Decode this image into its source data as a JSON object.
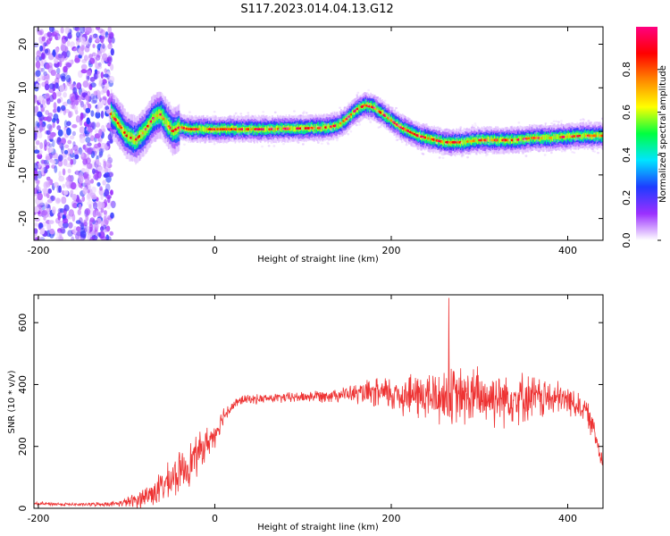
{
  "figure_title": "S117.2023.014.04.13.G12",
  "chart_data": [
    {
      "type": "heatmap",
      "title": "",
      "xlabel": "Height of straight line (km)",
      "ylabel": "Frequency (Hz)",
      "xlim": [
        -205,
        440
      ],
      "ylim": [
        -25,
        24
      ],
      "xticks": [
        -200,
        0,
        200,
        400
      ],
      "yticks": [
        -20,
        -10,
        0,
        10,
        20
      ],
      "xtick_labels": [
        "-200",
        "0",
        "200",
        "400"
      ],
      "ytick_labels": [
        "-20",
        "-10",
        "0",
        "10",
        "20"
      ],
      "colorbar": {
        "label": "Normalized spectral amplitude",
        "range": [
          0,
          1
        ],
        "ticks": [
          0.0,
          0.2,
          0.4,
          0.6,
          0.8
        ],
        "tick_labels": [
          "0.0",
          "0.2",
          "0.4",
          "0.6",
          "0.8"
        ],
        "colormap": [
          "#ffffff",
          "#9b30ff",
          "#1e3cff",
          "#00e5ff",
          "#00ff40",
          "#ffff00",
          "#ff8800",
          "#ff0000",
          "#ff0080"
        ]
      },
      "noise_region_x": [
        -205,
        -115
      ],
      "ridge": {
        "x": [
          -118,
          -110,
          -100,
          -90,
          -80,
          -70,
          -62,
          -55,
          -48,
          -40,
          -30,
          -20,
          -10,
          0,
          20,
          40,
          60,
          80,
          100,
          120,
          130,
          140,
          150,
          160,
          170,
          180,
          190,
          200,
          210,
          220,
          230,
          240,
          250,
          260,
          280,
          300,
          320,
          340,
          360,
          380,
          400,
          420,
          440
        ],
        "y": [
          4,
          2,
          -1,
          -2,
          0,
          3,
          4,
          2,
          0,
          1,
          0.5,
          0.5,
          0.5,
          0.5,
          0.5,
          0.5,
          0.5,
          0.6,
          0.7,
          0.8,
          1,
          1.5,
          3,
          5,
          6,
          5.5,
          4,
          2.5,
          1,
          0,
          -1,
          -1.5,
          -2,
          -2.5,
          -2.5,
          -2,
          -2,
          -2,
          -1.5,
          -1.5,
          -1.2,
          -1,
          -1
        ]
      }
    },
    {
      "type": "line",
      "title": "",
      "xlabel": "Height of straight line (km)",
      "ylabel": "SNR (10 * v/v)",
      "xlim": [
        -205,
        440
      ],
      "ylim": [
        0,
        690
      ],
      "xticks": [
        -200,
        0,
        200,
        400
      ],
      "yticks": [
        0,
        200,
        400,
        600
      ],
      "xtick_labels": [
        "-200",
        "0",
        "200",
        "400"
      ],
      "ytick_labels": [
        "0",
        "200",
        "400",
        "600"
      ],
      "color": "#ee3333",
      "envelope": {
        "x": [
          -205,
          -150,
          -110,
          -90,
          -70,
          -50,
          -30,
          -15,
          0,
          10,
          20,
          30,
          60,
          100,
          150,
          200,
          250,
          300,
          350,
          400,
          420,
          430,
          440
        ],
        "mean": [
          15,
          12,
          15,
          25,
          50,
          90,
          140,
          190,
          240,
          300,
          330,
          350,
          355,
          360,
          370,
          370,
          360,
          360,
          360,
          350,
          320,
          250,
          150
        ],
        "spread": [
          6,
          5,
          8,
          25,
          45,
          60,
          70,
          60,
          40,
          30,
          20,
          15,
          15,
          18,
          25,
          60,
          90,
          100,
          80,
          50,
          40,
          40,
          40
        ]
      },
      "peak_max": 680
    }
  ]
}
